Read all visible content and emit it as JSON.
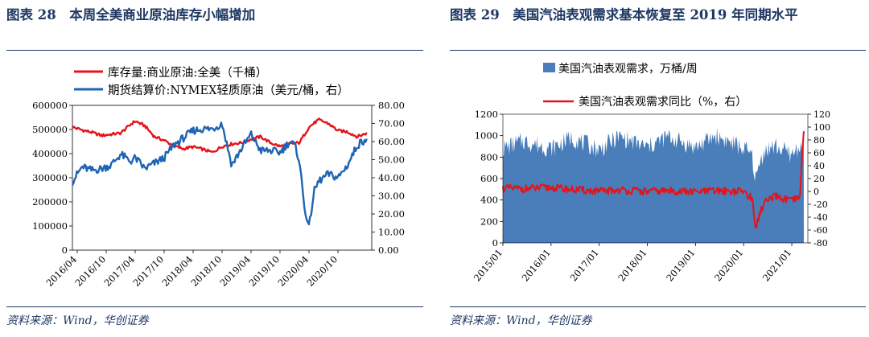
{
  "left": {
    "title": "图表 28　本周全美商业原油库存小幅增加",
    "source": "资料来源：Wind，华创证券",
    "legend": [
      "库存量:商业原油:全美（千桶）",
      "期货结算价:NYMEX轻质原油（美元/桶，右）"
    ],
    "yleft_ticks": [
      "600000",
      "500000",
      "400000",
      "300000",
      "200000",
      "100000",
      "0"
    ],
    "yright_ticks": [
      "80.00",
      "70.00",
      "60.00",
      "50.00",
      "40.00",
      "30.00",
      "20.00",
      "10.00",
      "0.00"
    ],
    "x_ticks": [
      "2016/04",
      "2016/10",
      "2017/04",
      "2017/10",
      "2018/04",
      "2018/10",
      "2019/04",
      "2019/10",
      "2020/04",
      "2020/10"
    ]
  },
  "right": {
    "title": "图表 29　美国汽油表观需求基本恢复至 2019 年同期水平",
    "source": "资料来源：Wind，华创证券",
    "legend": [
      "美国汽油表观需求，万桶/周",
      "美国汽油表观需求同比（%，右）"
    ],
    "yleft_ticks": [
      "1200",
      "1000",
      "800",
      "600",
      "400",
      "200",
      "0"
    ],
    "yright_ticks": [
      "120",
      "100",
      "80",
      "60",
      "40",
      "20",
      "0",
      "-20",
      "-40",
      "-60",
      "-80"
    ],
    "x_ticks": [
      "2015/01",
      "2016/01",
      "2017/01",
      "2018/01",
      "2019/01",
      "2020/01",
      "2021/01"
    ]
  },
  "chart_data": [
    {
      "type": "line",
      "colors": {
        "inventory": "#e3141b",
        "price": "#1f64b4"
      },
      "ylim_left": [
        0,
        600000
      ],
      "ylim_right": [
        0,
        80
      ],
      "x_range": [
        "2016-03",
        "2021-05"
      ],
      "series": [
        {
          "name": "库存量:商业原油:全美（千桶）",
          "axis": "left",
          "x": [
            "2016-03",
            "2016-05",
            "2016-07",
            "2016-09",
            "2016-11",
            "2017-01",
            "2017-03",
            "2017-04",
            "2017-06",
            "2017-08",
            "2017-10",
            "2017-12",
            "2018-02",
            "2018-04",
            "2018-06",
            "2018-08",
            "2018-10",
            "2018-12",
            "2019-02",
            "2019-04",
            "2019-06",
            "2019-08",
            "2019-10",
            "2019-12",
            "2020-02",
            "2020-04",
            "2020-06",
            "2020-08",
            "2020-10",
            "2020-12",
            "2021-02",
            "2021-04"
          ],
          "values": [
            510000,
            498000,
            488000,
            475000,
            480000,
            485000,
            520000,
            535000,
            515000,
            470000,
            455000,
            432000,
            420000,
            428000,
            418000,
            405000,
            430000,
            440000,
            445000,
            460000,
            470000,
            445000,
            430000,
            440000,
            445000,
            510000,
            540000,
            525000,
            495000,
            490000,
            470000,
            485000
          ]
        },
        {
          "name": "期货结算价:NYMEX轻质原油（美元/桶，右）",
          "axis": "right",
          "x": [
            "2016-03",
            "2016-05",
            "2016-07",
            "2016-09",
            "2016-11",
            "2017-01",
            "2017-03",
            "2017-04",
            "2017-06",
            "2017-08",
            "2017-10",
            "2017-12",
            "2018-02",
            "2018-04",
            "2018-06",
            "2018-08",
            "2018-10",
            "2018-12",
            "2019-02",
            "2019-04",
            "2019-06",
            "2019-08",
            "2019-10",
            "2019-12",
            "2020-01",
            "2020-02",
            "2020-03",
            "2020-04",
            "2020-05",
            "2020-06",
            "2020-08",
            "2020-10",
            "2020-12",
            "2021-02",
            "2021-04"
          ],
          "values": [
            38,
            46,
            44,
            45,
            47,
            53,
            49,
            51,
            45,
            48,
            51,
            58,
            62,
            66,
            67,
            67,
            70,
            47,
            56,
            64,
            55,
            55,
            54,
            60,
            58,
            50,
            25,
            12,
            32,
            38,
            42,
            40,
            47,
            58,
            62
          ]
        }
      ]
    },
    {
      "type": "area",
      "colors": {
        "demand": "#4a7ebb",
        "yoy": "#e3141b"
      },
      "ylim_left": [
        0,
        1200
      ],
      "ylim_right": [
        -80,
        120
      ],
      "x_range": [
        "2015-01",
        "2021-05"
      ],
      "series": [
        {
          "name": "美国汽油表观需求，万桶/周",
          "axis": "left",
          "x": [
            "2015-01",
            "2015-06",
            "2016-01",
            "2016-06",
            "2017-01",
            "2017-06",
            "2018-01",
            "2018-06",
            "2019-01",
            "2019-06",
            "2020-01",
            "2020-03",
            "2020-04",
            "2020-06",
            "2020-09",
            "2021-01",
            "2021-04"
          ],
          "values": [
            880,
            950,
            880,
            980,
            870,
            990,
            890,
            990,
            890,
            1000,
            880,
            820,
            600,
            860,
            900,
            820,
            950
          ]
        },
        {
          "name": "美国汽油表观需求同比（%，右）",
          "axis": "right",
          "x": [
            "2015-01",
            "2015-06",
            "2016-01",
            "2016-06",
            "2017-01",
            "2017-06",
            "2018-01",
            "2018-06",
            "2019-01",
            "2019-06",
            "2020-01",
            "2020-03",
            "2020-04",
            "2020-06",
            "2020-09",
            "2021-01",
            "2021-03",
            "2021-04"
          ],
          "values": [
            5,
            4,
            6,
            3,
            0,
            2,
            0,
            1,
            -1,
            1,
            0,
            -10,
            -55,
            -18,
            -8,
            -15,
            -10,
            100
          ]
        }
      ]
    }
  ]
}
